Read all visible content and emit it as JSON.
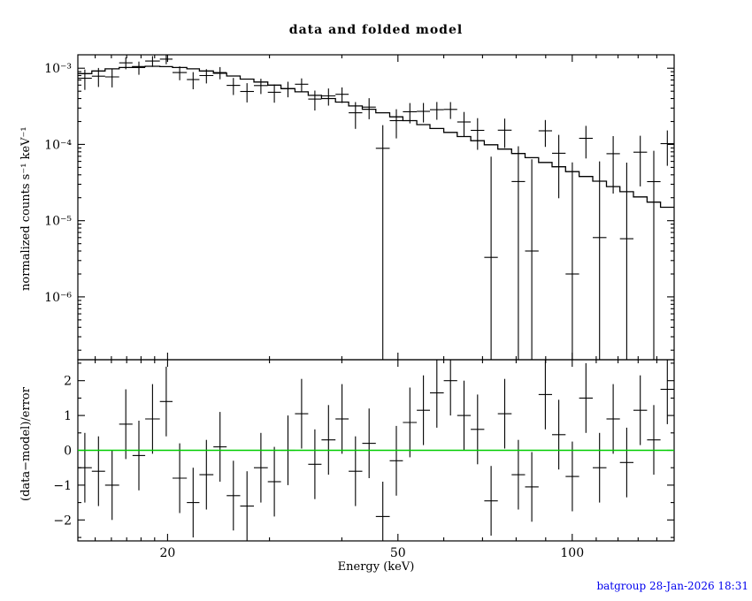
{
  "footer": {
    "text": "batgroup 28-Jan-2026 18:31",
    "color": "#0000ee"
  },
  "chart_data": {
    "type": "scatter",
    "title": "data and folded model",
    "xlabel": "Energy (keV)",
    "xscale": "log",
    "xlim": [
      14,
      150
    ],
    "xticks": [
      {
        "value": 20,
        "label": "20"
      },
      {
        "value": 50,
        "label": "50"
      },
      {
        "value": 100,
        "label": "100"
      }
    ],
    "xticks_minor": [
      15,
      16,
      17,
      18,
      19,
      30,
      40,
      60,
      70,
      80,
      90,
      110,
      120,
      130,
      140
    ],
    "bins": {
      "e_lo": [
        14.0,
        14.8,
        15.6,
        16.5,
        17.4,
        18.3,
        19.4,
        20.4,
        21.6,
        22.7,
        24.0,
        25.3,
        26.7,
        28.2,
        29.8,
        31.4,
        33.2,
        35.0,
        36.9,
        39.0,
        41.1,
        43.4,
        45.8,
        48.4,
        51.0,
        53.9,
        56.8,
        60.0,
        63.3,
        66.8,
        70.5,
        74.4,
        78.6,
        82.9,
        87.5,
        92.3,
        97.4,
        102.8,
        108.5,
        114.6,
        120.9,
        127.6,
        134.7,
        142.1
      ],
      "e_hi": [
        14.8,
        15.6,
        16.5,
        17.4,
        18.3,
        19.4,
        20.4,
        21.6,
        22.7,
        24.0,
        25.3,
        26.7,
        28.2,
        29.8,
        31.4,
        33.2,
        35.0,
        36.9,
        39.0,
        41.1,
        43.4,
        45.8,
        48.4,
        51.0,
        53.9,
        56.8,
        60.0,
        63.3,
        66.8,
        70.5,
        74.4,
        78.6,
        82.9,
        87.5,
        92.3,
        97.4,
        102.8,
        108.5,
        114.6,
        120.9,
        127.6,
        134.7,
        142.1,
        150.0
      ]
    },
    "panels": [
      {
        "name": "spectrum",
        "ylabel": "normalized counts s⁻¹ keV⁻¹",
        "yscale": "log",
        "ylim": [
          1.5e-07,
          0.0015
        ],
        "yticks": [
          {
            "value": 0.001,
            "label": "10⁻³"
          },
          {
            "value": 0.0001,
            "label": "10⁻⁴"
          },
          {
            "value": 1e-05,
            "label": "10⁻⁵"
          },
          {
            "value": 1e-06,
            "label": "10⁻⁶"
          }
        ],
        "series": [
          {
            "name": "data",
            "type": "errorbar",
            "y": [
              0.00074,
              0.000787,
              0.00077,
              0.001178,
              0.00102,
              0.00124,
              0.001316,
              0.000876,
              0.00071,
              0.000801,
              0.000876,
              0.000595,
              0.000496,
              0.000593,
              0.000483,
              0.00054,
              0.000616,
              0.000394,
              0.000433,
              0.000455,
              0.00026,
              0.000309,
              8.9e-05,
              0.000205,
              0.000269,
              0.000272,
              0.000286,
              0.000288,
              0.000197,
              0.000153,
              3.3e-06,
              0.000154,
              3.26e-05,
              4e-06,
              0.000151,
              7.67e-05,
              2e-06,
              0.0001205,
              6e-06,
              7.57e-05,
              5.8e-06,
              7.92e-05,
              3.25e-05,
              0.0001025
            ],
            "yerr": [
              0.00022,
              0.00022,
              0.00021,
              0.00021,
              0.0002,
              0.0002,
              0.00019,
              0.00018,
              0.00018,
              0.00017,
              0.00016,
              0.00015,
              0.00014,
              0.000135,
              0.00013,
              0.000125,
              0.00012,
              0.000115,
              0.00011,
              0.000105,
              0.0001,
              9.5e-05,
              9e-05,
              8.5e-05,
              8e-05,
              7.8e-05,
              7.5e-05,
              7.2e-05,
              7e-05,
              6.8e-05,
              6.6e-05,
              6.4e-05,
              6.2e-05,
              6e-05,
              5.8e-05,
              5.7e-05,
              5.6e-05,
              5.5e-05,
              5.4e-05,
              5.3e-05,
              5.2e-05,
              5.1e-05,
              5e-05,
              5e-05
            ]
          },
          {
            "name": "folded model",
            "type": "histogram",
            "y": [
              0.00085,
              0.00092,
              0.00098,
              0.00102,
              0.00105,
              0.00106,
              0.00105,
              0.00102,
              0.00098,
              0.00092,
              0.00086,
              0.00079,
              0.00072,
              0.00066,
              0.0006,
              0.00054,
              0.00049,
              0.00044,
              0.0004,
              0.00036,
              0.00032,
              0.00029,
              0.00026,
              0.00023,
              0.000205,
              0.000182,
              0.000162,
              0.000144,
              0.000127,
              0.000112,
              9.9e-05,
              8.7e-05,
              7.6e-05,
              6.7e-05,
              5.8e-05,
              5.1e-05,
              4.4e-05,
              3.8e-05,
              3.3e-05,
              2.8e-05,
              2.4e-05,
              2.05e-05,
              1.75e-05,
              1.5e-05
            ]
          }
        ]
      },
      {
        "name": "residuals",
        "ylabel": "(data−model)/error",
        "yscale": "linear",
        "ylim": [
          -2.6,
          2.6
        ],
        "yticks": [
          {
            "value": 2,
            "label": "2"
          },
          {
            "value": 1,
            "label": "1"
          },
          {
            "value": 0,
            "label": "0"
          },
          {
            "value": -1,
            "label": "−1"
          },
          {
            "value": -2,
            "label": "−2"
          }
        ],
        "yticks_minor": [
          -2.5,
          -1.5,
          -0.5,
          0.5,
          1.5,
          2.5
        ],
        "zero_line_color": "#00cc00",
        "series": [
          {
            "name": "(data-model)/error",
            "type": "errorbar",
            "y": [
              -0.5,
              -0.6,
              -1.0,
              0.75,
              -0.15,
              0.9,
              1.4,
              -0.8,
              -1.5,
              -0.7,
              0.1,
              -1.3,
              -1.6,
              -0.5,
              -0.9,
              0.0,
              1.05,
              -0.4,
              0.3,
              0.9,
              -0.6,
              0.2,
              -1.9,
              -0.3,
              0.8,
              1.15,
              1.65,
              2.0,
              1.0,
              0.6,
              -1.45,
              1.05,
              -0.7,
              -1.05,
              1.6,
              0.45,
              -0.75,
              1.5,
              -0.5,
              0.9,
              -0.35,
              1.15,
              0.3,
              1.75
            ],
            "yerr": 1
          }
        ]
      }
    ]
  }
}
